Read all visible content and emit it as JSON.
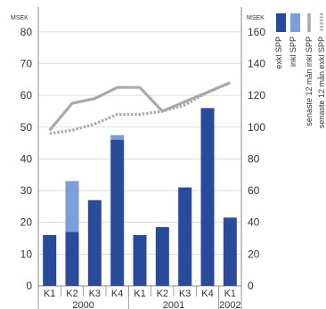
{
  "chart_data": {
    "type": "bar",
    "title": "",
    "left_axis": {
      "unit": "MSEK",
      "ylim": [
        0,
        85
      ],
      "ticks": [
        0,
        10,
        20,
        30,
        40,
        50,
        60,
        70,
        80
      ]
    },
    "right_axis": {
      "unit": "MSEK",
      "ylim": [
        0,
        170
      ],
      "ticks": [
        0,
        20,
        40,
        60,
        80,
        100,
        120,
        140,
        160
      ]
    },
    "categories": [
      "K1",
      "K2",
      "K3",
      "K4",
      "K1",
      "K2",
      "K3",
      "K4",
      "K1"
    ],
    "year_groups": [
      {
        "label": "2000",
        "start": 0,
        "end": 3
      },
      {
        "label": "2001",
        "start": 4,
        "end": 7
      },
      {
        "label": "2002",
        "start": 8,
        "end": 8
      }
    ],
    "bar_series": [
      {
        "name": "exkl SPP",
        "axis": "left",
        "color": "#2a4a9c",
        "values": [
          16,
          17,
          27,
          46,
          16,
          18.5,
          31,
          56,
          21.5
        ]
      },
      {
        "name": "inkl SPP",
        "axis": "left",
        "color": "#7b9fd6",
        "stacked_on": "exkl SPP",
        "values": [
          0,
          16,
          0,
          1.5,
          0,
          0,
          0,
          0,
          0
        ]
      }
    ],
    "line_series": [
      {
        "name": "senaste 12 mån inkl SPP",
        "axis": "right",
        "style": "solid",
        "color": "#a9a9a9",
        "values": [
          98,
          115,
          118,
          125,
          125,
          110,
          116,
          122,
          128
        ]
      },
      {
        "name": "senaste 12 mån exkl SPP",
        "axis": "right",
        "style": "dotted",
        "color": "#a9a9a9",
        "values": [
          96,
          98,
          102,
          108,
          108,
          110,
          114,
          122,
          128
        ]
      }
    ]
  }
}
